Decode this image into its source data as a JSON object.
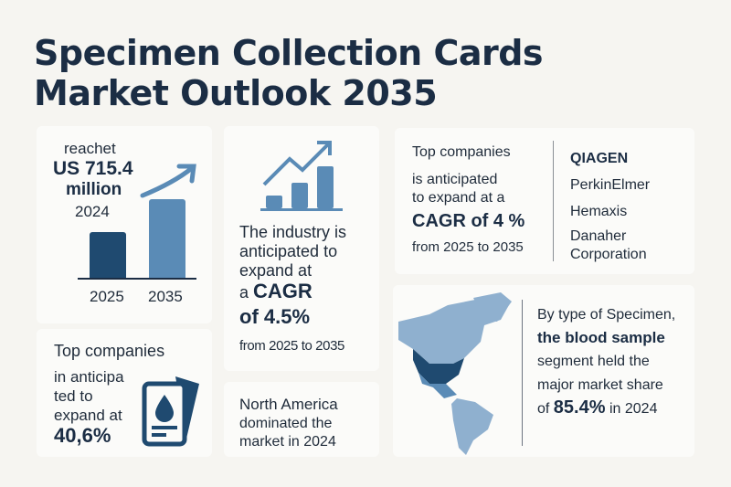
{
  "title": {
    "line1": "Specimen Collection Cards",
    "line2": "Market Outlook 2035"
  },
  "market_size": {
    "prefix": "reachet",
    "value": "US 715.4",
    "unit": "million",
    "year": "2024",
    "bar_labels": [
      "2025",
      "2035"
    ]
  },
  "industry_cagr": {
    "line1": "The industry is",
    "line2": "anticipated to",
    "line3": "expand at",
    "a": "a",
    "cagr": "CAGR",
    "value": "of 4.5%",
    "period": "from 2025 to 2035"
  },
  "top_companies_left": {
    "heading": "Top companies",
    "line1": "in anticipa",
    "line2": "ted to",
    "line3": "expand at",
    "value": "40,6%"
  },
  "north_america": {
    "line1": "North America",
    "line2": "dominated the",
    "line3": "market in 2024"
  },
  "top_companies_right": {
    "heading": "Top companies",
    "line1": "is anticipated",
    "line2": "to expand at a",
    "value": "CAGR of 4 %",
    "period": "from 2025 to 2035",
    "companies": [
      "QIAGEN",
      "PerkinElmer",
      "Hemaxis",
      "Danaher",
      "Corporation"
    ]
  },
  "specimen": {
    "line1": "By type of Specimen,",
    "line2": "the blood sample",
    "line3": "segment held the",
    "line4": "major market share",
    "of": "of",
    "value": "85.4%",
    "suffix": "in 2024"
  },
  "colors": {
    "navy": "#1b2d44",
    "dark_blue": "#1f4a70",
    "mid_blue": "#5a8bb6",
    "light_blue": "#8fb0cf"
  }
}
